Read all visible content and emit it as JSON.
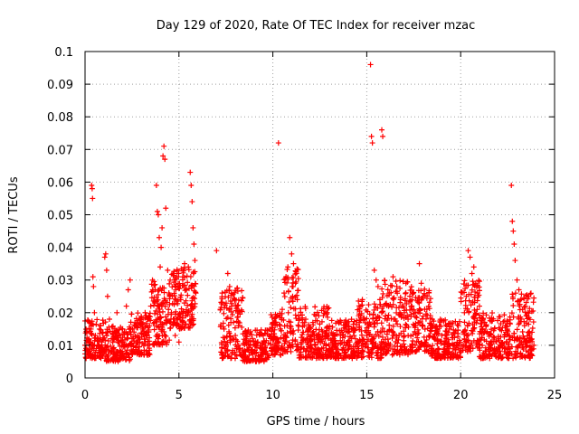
{
  "chart_data": {
    "type": "scatter",
    "title": "Day 129 of 2020, Rate Of TEC Index for receiver mzac",
    "xlabel": "GPS time / hours",
    "ylabel": "ROTI / TECUs",
    "xlim": [
      0,
      25
    ],
    "ylim": [
      0,
      0.1
    ],
    "x_ticks": [
      "0",
      "5",
      "10",
      "15",
      "20",
      "25"
    ],
    "y_ticks": [
      "0",
      "0.01",
      "0.02",
      "0.03",
      "0.04",
      "0.05",
      "0.06",
      "0.07",
      "0.08",
      "0.09",
      "0.1"
    ],
    "grid": true,
    "marker": "plus",
    "marker_color": "#ff0000",
    "points": [
      [
        0.0,
        0.01
      ],
      [
        0.1,
        0.014
      ],
      [
        0.15,
        0.008
      ],
      [
        0.2,
        0.012
      ],
      [
        0.25,
        0.017
      ],
      [
        0.3,
        0.011
      ],
      [
        0.35,
        0.059
      ],
      [
        0.38,
        0.058
      ],
      [
        0.4,
        0.055
      ],
      [
        0.42,
        0.031
      ],
      [
        0.45,
        0.028
      ],
      [
        0.5,
        0.02
      ],
      [
        0.55,
        0.013
      ],
      [
        0.6,
        0.009
      ],
      [
        0.7,
        0.012
      ],
      [
        0.8,
        0.016
      ],
      [
        0.9,
        0.01
      ],
      [
        1.0,
        0.008
      ],
      [
        1.05,
        0.037
      ],
      [
        1.1,
        0.038
      ],
      [
        1.15,
        0.033
      ],
      [
        1.2,
        0.025
      ],
      [
        1.3,
        0.018
      ],
      [
        1.4,
        0.012
      ],
      [
        1.5,
        0.009
      ],
      [
        1.6,
        0.014
      ],
      [
        1.7,
        0.02
      ],
      [
        1.8,
        0.011
      ],
      [
        1.9,
        0.008
      ],
      [
        2.0,
        0.015
      ],
      [
        2.1,
        0.01
      ],
      [
        2.2,
        0.022
      ],
      [
        2.3,
        0.027
      ],
      [
        2.4,
        0.03
      ],
      [
        2.5,
        0.012
      ],
      [
        2.6,
        0.008
      ],
      [
        2.7,
        0.016
      ],
      [
        2.8,
        0.013
      ],
      [
        2.9,
        0.011
      ],
      [
        3.0,
        0.018
      ],
      [
        3.1,
        0.015
      ],
      [
        3.2,
        0.02
      ],
      [
        3.3,
        0.014
      ],
      [
        3.4,
        0.019
      ],
      [
        3.5,
        0.022
      ],
      [
        3.6,
        0.027
      ],
      [
        3.7,
        0.017
      ],
      [
        3.8,
        0.059
      ],
      [
        3.85,
        0.051
      ],
      [
        3.9,
        0.05
      ],
      [
        3.95,
        0.043
      ],
      [
        4.0,
        0.034
      ],
      [
        4.05,
        0.04
      ],
      [
        4.1,
        0.046
      ],
      [
        4.15,
        0.068
      ],
      [
        4.2,
        0.071
      ],
      [
        4.25,
        0.067
      ],
      [
        4.3,
        0.052
      ],
      [
        4.4,
        0.033
      ],
      [
        4.5,
        0.025
      ],
      [
        4.6,
        0.02
      ],
      [
        4.7,
        0.018
      ],
      [
        4.8,
        0.013
      ],
      [
        4.9,
        0.016
      ],
      [
        5.0,
        0.011
      ],
      [
        5.1,
        0.024
      ],
      [
        5.2,
        0.031
      ],
      [
        5.3,
        0.035
      ],
      [
        5.4,
        0.027
      ],
      [
        5.5,
        0.034
      ],
      [
        5.6,
        0.063
      ],
      [
        5.65,
        0.059
      ],
      [
        5.7,
        0.054
      ],
      [
        5.75,
        0.046
      ],
      [
        5.8,
        0.041
      ],
      [
        5.85,
        0.036
      ],
      [
        5.9,
        0.026
      ],
      [
        7.0,
        0.039
      ],
      [
        7.2,
        0.021
      ],
      [
        7.3,
        0.026
      ],
      [
        7.4,
        0.015
      ],
      [
        7.5,
        0.01
      ],
      [
        7.6,
        0.032
      ],
      [
        7.7,
        0.028
      ],
      [
        7.8,
        0.022
      ],
      [
        7.9,
        0.017
      ],
      [
        8.0,
        0.013
      ],
      [
        8.2,
        0.009
      ],
      [
        8.4,
        0.007
      ],
      [
        8.6,
        0.012
      ],
      [
        8.8,
        0.01
      ],
      [
        9.0,
        0.008
      ],
      [
        9.2,
        0.011
      ],
      [
        9.4,
        0.006
      ],
      [
        9.6,
        0.01
      ],
      [
        9.8,
        0.013
      ],
      [
        10.0,
        0.009
      ],
      [
        10.2,
        0.012
      ],
      [
        10.3,
        0.072
      ],
      [
        10.4,
        0.015
      ],
      [
        10.5,
        0.021
      ],
      [
        10.6,
        0.026
      ],
      [
        10.7,
        0.031
      ],
      [
        10.8,
        0.034
      ],
      [
        10.9,
        0.043
      ],
      [
        11.0,
        0.038
      ],
      [
        11.1,
        0.035
      ],
      [
        11.2,
        0.029
      ],
      [
        11.3,
        0.024
      ],
      [
        11.4,
        0.018
      ],
      [
        11.6,
        0.014
      ],
      [
        11.8,
        0.012
      ],
      [
        12.0,
        0.01
      ],
      [
        12.2,
        0.013
      ],
      [
        12.4,
        0.011
      ],
      [
        12.6,
        0.009
      ],
      [
        12.8,
        0.012
      ],
      [
        13.0,
        0.015
      ],
      [
        13.2,
        0.01
      ],
      [
        13.4,
        0.008
      ],
      [
        13.6,
        0.013
      ],
      [
        13.8,
        0.011
      ],
      [
        14.0,
        0.014
      ],
      [
        14.2,
        0.009
      ],
      [
        14.4,
        0.012
      ],
      [
        14.6,
        0.017
      ],
      [
        14.8,
        0.01
      ],
      [
        15.0,
        0.013
      ],
      [
        15.1,
        0.016
      ],
      [
        15.2,
        0.096
      ],
      [
        15.25,
        0.074
      ],
      [
        15.3,
        0.072
      ],
      [
        15.4,
        0.033
      ],
      [
        15.5,
        0.03
      ],
      [
        15.6,
        0.028
      ],
      [
        15.7,
        0.024
      ],
      [
        15.8,
        0.076
      ],
      [
        15.85,
        0.074
      ],
      [
        15.9,
        0.022
      ],
      [
        16.0,
        0.019
      ],
      [
        16.2,
        0.026
      ],
      [
        16.4,
        0.031
      ],
      [
        16.6,
        0.028
      ],
      [
        16.8,
        0.024
      ],
      [
        17.0,
        0.02
      ],
      [
        17.2,
        0.018
      ],
      [
        17.4,
        0.022
      ],
      [
        17.6,
        0.016
      ],
      [
        17.8,
        0.035
      ],
      [
        17.9,
        0.029
      ],
      [
        18.0,
        0.025
      ],
      [
        18.2,
        0.021
      ],
      [
        18.4,
        0.016
      ],
      [
        18.6,
        0.012
      ],
      [
        18.8,
        0.009
      ],
      [
        19.0,
        0.013
      ],
      [
        19.2,
        0.011
      ],
      [
        19.4,
        0.015
      ],
      [
        19.6,
        0.01
      ],
      [
        19.8,
        0.007
      ],
      [
        20.0,
        0.009
      ],
      [
        20.2,
        0.02
      ],
      [
        20.3,
        0.025
      ],
      [
        20.4,
        0.039
      ],
      [
        20.5,
        0.037
      ],
      [
        20.6,
        0.032
      ],
      [
        20.7,
        0.034
      ],
      [
        20.8,
        0.029
      ],
      [
        20.9,
        0.026
      ],
      [
        21.0,
        0.022
      ],
      [
        21.2,
        0.018
      ],
      [
        21.4,
        0.014
      ],
      [
        21.6,
        0.011
      ],
      [
        21.8,
        0.009
      ],
      [
        22.0,
        0.012
      ],
      [
        22.2,
        0.01
      ],
      [
        22.4,
        0.014
      ],
      [
        22.6,
        0.013
      ],
      [
        22.7,
        0.059
      ],
      [
        22.75,
        0.048
      ],
      [
        22.8,
        0.045
      ],
      [
        22.85,
        0.041
      ],
      [
        22.9,
        0.036
      ],
      [
        23.0,
        0.03
      ],
      [
        23.1,
        0.027
      ],
      [
        23.2,
        0.024
      ],
      [
        23.3,
        0.021
      ],
      [
        23.4,
        0.016
      ],
      [
        23.5,
        0.011
      ],
      [
        23.6,
        0.008
      ],
      [
        23.7,
        0.012
      ],
      [
        23.8,
        0.014
      ],
      [
        23.9,
        0.01
      ]
    ],
    "dense_bands": [
      [
        0.0,
        1.1,
        0.006,
        0.018
      ],
      [
        1.1,
        2.4,
        0.005,
        0.016
      ],
      [
        2.4,
        3.5,
        0.007,
        0.02
      ],
      [
        3.5,
        4.5,
        0.01,
        0.03
      ],
      [
        4.5,
        5.9,
        0.015,
        0.034
      ],
      [
        7.2,
        8.4,
        0.006,
        0.028
      ],
      [
        8.4,
        9.8,
        0.005,
        0.015
      ],
      [
        9.8,
        10.6,
        0.007,
        0.02
      ],
      [
        10.6,
        11.4,
        0.008,
        0.034
      ],
      [
        11.4,
        13.0,
        0.006,
        0.022
      ],
      [
        13.0,
        14.5,
        0.006,
        0.018
      ],
      [
        14.5,
        15.8,
        0.006,
        0.024
      ],
      [
        15.8,
        17.2,
        0.007,
        0.03
      ],
      [
        17.2,
        18.4,
        0.008,
        0.028
      ],
      [
        18.4,
        20.0,
        0.006,
        0.018
      ],
      [
        20.0,
        21.0,
        0.008,
        0.03
      ],
      [
        21.0,
        22.7,
        0.006,
        0.02
      ],
      [
        22.7,
        23.9,
        0.006,
        0.026
      ]
    ]
  }
}
